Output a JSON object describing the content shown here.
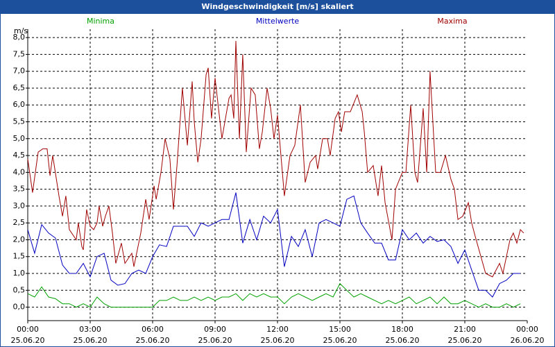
{
  "chart_data": {
    "type": "line",
    "title": "Windgeschwindigkeit [m/s] skaliert",
    "ylabel": "m/s",
    "xlim": [
      0,
      24
    ],
    "ylim": [
      -0.4,
      8.25
    ],
    "xticks": [
      {
        "value": 0,
        "label": "00:00",
        "date": "25.06.20"
      },
      {
        "value": 3,
        "label": "03:00",
        "date": "25.06.20"
      },
      {
        "value": 6,
        "label": "06:00",
        "date": "25.06.20"
      },
      {
        "value": 9,
        "label": "09:00",
        "date": "25.06.20"
      },
      {
        "value": 12,
        "label": "12:00",
        "date": "25.06.20"
      },
      {
        "value": 15,
        "label": "15:00",
        "date": "25.06.20"
      },
      {
        "value": 18,
        "label": "18:00",
        "date": "25.06.20"
      },
      {
        "value": 21,
        "label": "21:00",
        "date": "25.06.20"
      },
      {
        "value": 24,
        "label": "00:00",
        "date": "26.06.20"
      }
    ],
    "yticks": [
      {
        "value": 0,
        "label": "0,0"
      },
      {
        "value": 0.5,
        "label": "0,5"
      },
      {
        "value": 1,
        "label": "1,0"
      },
      {
        "value": 1.5,
        "label": "1,5"
      },
      {
        "value": 2,
        "label": "2,0"
      },
      {
        "value": 2.5,
        "label": "2,5"
      },
      {
        "value": 3,
        "label": "3,0"
      },
      {
        "value": 3.5,
        "label": "3,5"
      },
      {
        "value": 4,
        "label": "4,0"
      },
      {
        "value": 4.5,
        "label": "4,5"
      },
      {
        "value": 5,
        "label": "5,0"
      },
      {
        "value": 5.5,
        "label": "5,5"
      },
      {
        "value": 6,
        "label": "6,0"
      },
      {
        "value": 6.5,
        "label": "6,5"
      },
      {
        "value": 7,
        "label": "7,0"
      },
      {
        "value": 7.5,
        "label": "7,5"
      },
      {
        "value": 8,
        "label": "8,0"
      }
    ],
    "grid": true,
    "x": [
      0,
      0.33,
      0.67,
      1,
      1.33,
      1.67,
      2,
      2.33,
      2.67,
      3,
      3.33,
      3.67,
      4,
      4.33,
      4.67,
      5,
      5.33,
      5.67,
      6,
      6.33,
      6.67,
      7,
      7.33,
      7.67,
      8,
      8.33,
      8.67,
      9,
      9.33,
      9.67,
      10,
      10.33,
      10.67,
      11,
      11.33,
      11.67,
      12,
      12.33,
      12.67,
      13,
      13.33,
      13.67,
      14,
      14.33,
      14.67,
      15,
      15.33,
      15.67,
      16,
      16.33,
      16.67,
      17,
      17.33,
      17.67,
      18,
      18.33,
      18.67,
      19,
      19.33,
      19.67,
      20,
      20.33,
      20.67,
      21,
      21.33,
      21.67,
      22,
      22.33,
      22.67,
      23,
      23.33,
      23.67
    ],
    "series": [
      {
        "name": "Minima",
        "color": "#00a000",
        "values": [
          0.4,
          0.3,
          0.6,
          0.3,
          0.25,
          0.1,
          0.1,
          0,
          0.1,
          0,
          0.3,
          0.1,
          0,
          0,
          0,
          0,
          0,
          0,
          0,
          0.2,
          0.2,
          0.3,
          0.2,
          0.2,
          0.3,
          0.2,
          0.3,
          0.2,
          0.3,
          0.3,
          0.4,
          0.2,
          0.4,
          0.3,
          0.4,
          0.3,
          0.3,
          0.1,
          0.3,
          0.4,
          0.3,
          0.2,
          0.3,
          0.4,
          0.3,
          0.7,
          0.5,
          0.3,
          0.4,
          0.3,
          0.2,
          0.1,
          0.2,
          0.1,
          0.2,
          0.3,
          0.1,
          0.2,
          0.3,
          0.1,
          0.3,
          0.1,
          0.1,
          0.2,
          0.1,
          0,
          0.1,
          0,
          0,
          0.1,
          0,
          0.1
        ]
      },
      {
        "name": "Mittelwerte",
        "color": "#0000c0",
        "values": [
          2.3,
          1.6,
          2.45,
          2.2,
          2.05,
          1.25,
          1.0,
          1.0,
          1.3,
          0.9,
          1.5,
          1.6,
          0.8,
          0.65,
          0.7,
          1.0,
          1.1,
          1.0,
          1.5,
          1.85,
          1.8,
          2.4,
          2.4,
          2.4,
          2.1,
          2.5,
          2.4,
          2.5,
          2.6,
          2.6,
          3.4,
          1.9,
          2.6,
          2.0,
          2.7,
          2.5,
          2.9,
          1.2,
          2.1,
          1.8,
          2.3,
          1.5,
          2.5,
          2.6,
          2.5,
          2.4,
          3.2,
          3.3,
          2.5,
          2.2,
          1.9,
          1.9,
          1.4,
          1.4,
          2.3,
          2.0,
          2.2,
          1.9,
          2.1,
          1.95,
          2.0,
          1.8,
          1.3,
          1.7,
          1.1,
          0.5,
          0.5,
          0.3,
          0.7,
          0.8,
          1.0,
          1.0
        ]
      },
      {
        "name": "Maxima",
        "color": "#a00000",
        "x": [
          0,
          0.23,
          0.5,
          0.73,
          0.93,
          1.07,
          1.2,
          1.5,
          1.67,
          1.83,
          2,
          2.33,
          2.43,
          2.6,
          2.67,
          2.83,
          3,
          3.17,
          3.33,
          3.43,
          3.6,
          3.73,
          3.9,
          4.07,
          4.23,
          4.5,
          4.67,
          5,
          5.1,
          5.43,
          5.67,
          5.83,
          6.07,
          6.17,
          6.4,
          6.6,
          6.83,
          7,
          7.17,
          7.43,
          7.67,
          7.9,
          8,
          8.17,
          8.33,
          8.57,
          8.67,
          8.83,
          9,
          9.33,
          9.67,
          9.77,
          9.9,
          10,
          10.17,
          10.33,
          10.5,
          10.73,
          10.93,
          11.13,
          11.27,
          11.5,
          11.67,
          11.83,
          12,
          12.33,
          12.6,
          12.83,
          13.1,
          13.33,
          13.57,
          13.83,
          13.93,
          14.17,
          14.4,
          14.53,
          14.77,
          14.93,
          15.07,
          15.23,
          15.5,
          15.83,
          16.07,
          16.17,
          16.33,
          16.6,
          16.83,
          17,
          17.17,
          17.5,
          17.67,
          18,
          18.17,
          18.4,
          18.6,
          18.73,
          19,
          19.17,
          19.33,
          19.6,
          19.83,
          20.07,
          20.33,
          20.5,
          20.67,
          20.9,
          21.17,
          21.33,
          21.5,
          22,
          22.33,
          22.67,
          22.83,
          23,
          23.17,
          23.33,
          23.5,
          23.67,
          23.83
        ],
        "values": [
          4.4,
          3.4,
          4.6,
          4.7,
          4.7,
          3.9,
          4.5,
          3.3,
          2.7,
          3.3,
          2.3,
          2.0,
          2.5,
          1.8,
          1.7,
          2.9,
          2.4,
          2.3,
          2.5,
          3.0,
          2.4,
          2.7,
          3.0,
          2.2,
          1.3,
          1.9,
          1.3,
          1.6,
          1.2,
          2.2,
          3.2,
          2.6,
          3.6,
          3.2,
          4.0,
          5.0,
          4.4,
          2.9,
          4.2,
          6.5,
          4.8,
          6.7,
          5.5,
          4.3,
          5.0,
          6.9,
          7.1,
          5.6,
          6.8,
          5.0,
          6.2,
          6.3,
          5.6,
          7.9,
          5.0,
          7.5,
          4.6,
          6.5,
          6.3,
          4.7,
          5.2,
          6.5,
          5.9,
          5.0,
          5.7,
          3.3,
          4.5,
          4.8,
          6.0,
          3.7,
          4.3,
          4.5,
          4.1,
          5.0,
          5.0,
          4.5,
          5.6,
          5.8,
          5.2,
          5.8,
          5.8,
          6.3,
          5.8,
          5.2,
          4.0,
          4.2,
          3.3,
          4.2,
          3.1,
          2.0,
          3.5,
          4.0,
          4.0,
          6.0,
          4.0,
          3.7,
          5.9,
          4.0,
          7.0,
          4.0,
          4.0,
          4.5,
          3.8,
          3.5,
          2.6,
          2.7,
          3.1,
          2.5,
          2.1,
          1.0,
          0.9,
          1.3,
          1.0,
          1.5,
          2.0,
          2.2,
          1.9,
          2.3,
          2.2
        ]
      }
    ]
  }
}
